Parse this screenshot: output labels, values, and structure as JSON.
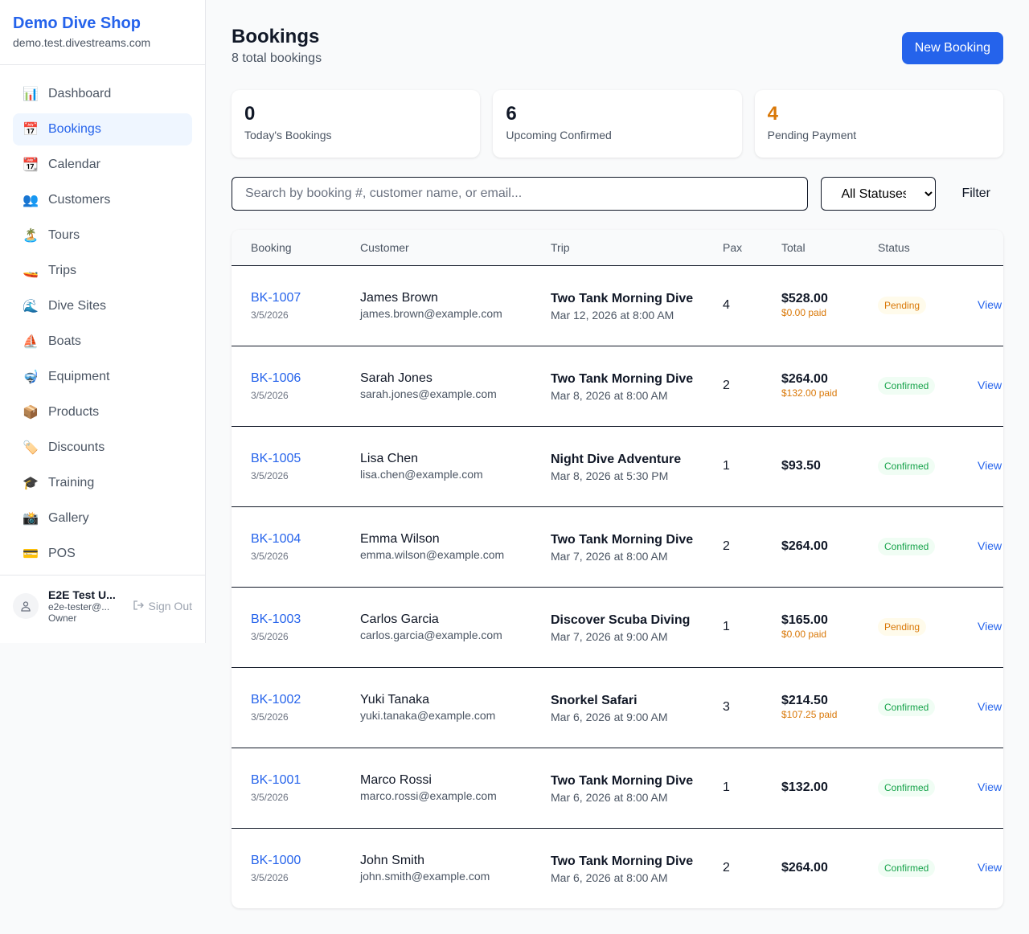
{
  "sidebar": {
    "shop_name": "Demo Dive Shop",
    "domain": "demo.test.divestreams.com",
    "items": [
      {
        "icon": "📊",
        "label": "Dashboard"
      },
      {
        "icon": "📅",
        "label": "Bookings",
        "active": true
      },
      {
        "icon": "📆",
        "label": "Calendar"
      },
      {
        "icon": "👥",
        "label": "Customers"
      },
      {
        "icon": "🏝️",
        "label": "Tours"
      },
      {
        "icon": "🚤",
        "label": "Trips"
      },
      {
        "icon": "🌊",
        "label": "Dive Sites"
      },
      {
        "icon": "⛵",
        "label": "Boats"
      },
      {
        "icon": "🤿",
        "label": "Equipment"
      },
      {
        "icon": "📦",
        "label": "Products"
      },
      {
        "icon": "🏷️",
        "label": "Discounts"
      },
      {
        "icon": "🎓",
        "label": "Training"
      },
      {
        "icon": "📸",
        "label": "Gallery"
      },
      {
        "icon": "💳",
        "label": "POS"
      }
    ],
    "user": {
      "name": "E2E Test U...",
      "email": "e2e-tester@...",
      "role": "Owner",
      "sign_out": "Sign Out"
    }
  },
  "header": {
    "title": "Bookings",
    "subtitle": "8 total bookings",
    "new_button": "New Booking"
  },
  "stats": [
    {
      "value": "0",
      "label": "Today's Bookings",
      "color": "#111827"
    },
    {
      "value": "6",
      "label": "Upcoming Confirmed",
      "color": "#111827"
    },
    {
      "value": "4",
      "label": "Pending Payment",
      "color": "#d97706"
    }
  ],
  "filters": {
    "search_placeholder": "Search by booking #, customer name, or email...",
    "status_selected": "All Statuses",
    "filter_button": "Filter"
  },
  "table": {
    "headers": [
      "Booking",
      "Customer",
      "Trip",
      "Pax",
      "Total",
      "Status",
      ""
    ],
    "rows": [
      {
        "id": "BK-1007",
        "date": "3/5/2026",
        "name": "James Brown",
        "email": "james.brown@example.com",
        "trip": "Two Tank Morning Dive",
        "when": "Mar 12, 2026 at 8:00 AM",
        "pax": "4",
        "total": "$528.00",
        "paid": "$0.00 paid",
        "status": "Pending",
        "action": "View"
      },
      {
        "id": "BK-1006",
        "date": "3/5/2026",
        "name": "Sarah Jones",
        "email": "sarah.jones@example.com",
        "trip": "Two Tank Morning Dive",
        "when": "Mar 8, 2026 at 8:00 AM",
        "pax": "2",
        "total": "$264.00",
        "paid": "$132.00 paid",
        "status": "Confirmed",
        "action": "View"
      },
      {
        "id": "BK-1005",
        "date": "3/5/2026",
        "name": "Lisa Chen",
        "email": "lisa.chen@example.com",
        "trip": "Night Dive Adventure",
        "when": "Mar 8, 2026 at 5:30 PM",
        "pax": "1",
        "total": "$93.50",
        "paid": null,
        "status": "Confirmed",
        "action": "View"
      },
      {
        "id": "BK-1004",
        "date": "3/5/2026",
        "name": "Emma Wilson",
        "email": "emma.wilson@example.com",
        "trip": "Two Tank Morning Dive",
        "when": "Mar 7, 2026 at 8:00 AM",
        "pax": "2",
        "total": "$264.00",
        "paid": null,
        "status": "Confirmed",
        "action": "View"
      },
      {
        "id": "BK-1003",
        "date": "3/5/2026",
        "name": "Carlos Garcia",
        "email": "carlos.garcia@example.com",
        "trip": "Discover Scuba Diving",
        "when": "Mar 7, 2026 at 9:00 AM",
        "pax": "1",
        "total": "$165.00",
        "paid": "$0.00 paid",
        "status": "Pending",
        "action": "View"
      },
      {
        "id": "BK-1002",
        "date": "3/5/2026",
        "name": "Yuki Tanaka",
        "email": "yuki.tanaka@example.com",
        "trip": "Snorkel Safari",
        "when": "Mar 6, 2026 at 9:00 AM",
        "pax": "3",
        "total": "$214.50",
        "paid": "$107.25 paid",
        "status": "Confirmed",
        "action": "View"
      },
      {
        "id": "BK-1001",
        "date": "3/5/2026",
        "name": "Marco Rossi",
        "email": "marco.rossi@example.com",
        "trip": "Two Tank Morning Dive",
        "when": "Mar 6, 2026 at 8:00 AM",
        "pax": "1",
        "total": "$132.00",
        "paid": null,
        "status": "Confirmed",
        "action": "View"
      },
      {
        "id": "BK-1000",
        "date": "3/5/2026",
        "name": "John Smith",
        "email": "john.smith@example.com",
        "trip": "Two Tank Morning Dive",
        "when": "Mar 6, 2026 at 8:00 AM",
        "pax": "2",
        "total": "$264.00",
        "paid": null,
        "status": "Confirmed",
        "action": "View"
      }
    ]
  },
  "status_colors": {
    "Pending": {
      "bg": "#fffbeb",
      "fg": "#d97706"
    },
    "Confirmed": {
      "bg": "#f0fdf4",
      "fg": "#16a34a"
    }
  }
}
